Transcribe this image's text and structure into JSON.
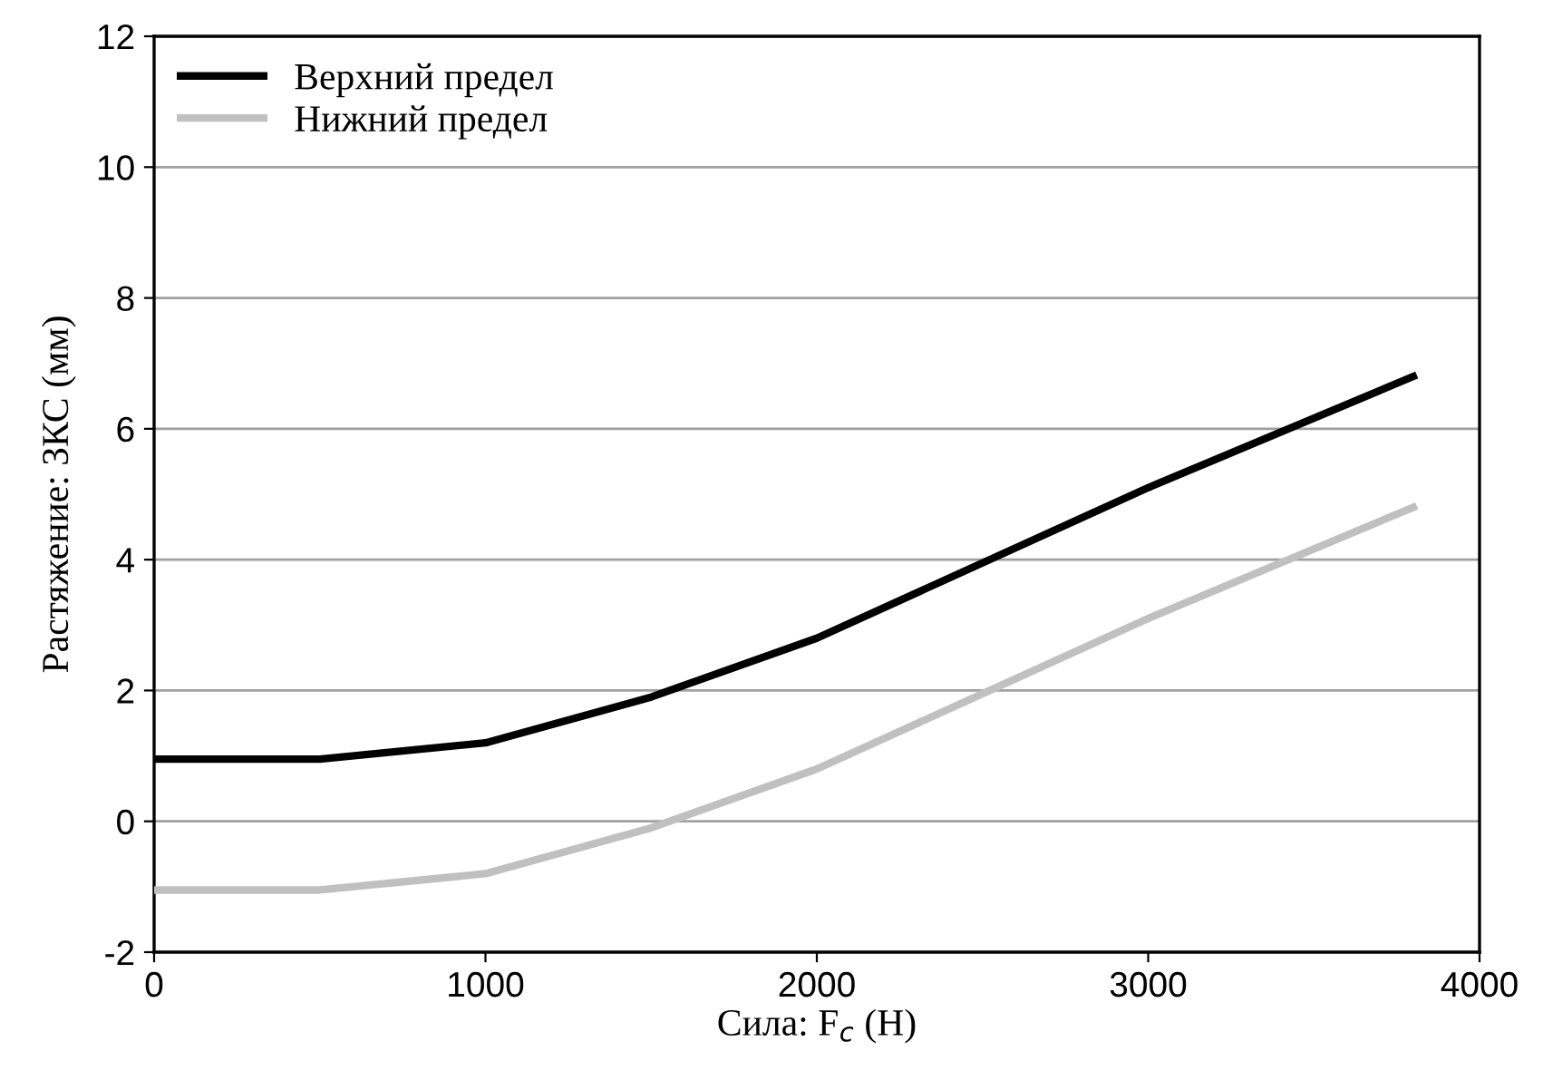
{
  "chart_data": {
    "type": "line",
    "xlabel": "Сила: F$_{c}$ (Н)",
    "ylabel": "Растяжение: ЗКС (мм)",
    "x": [
      0,
      500,
      1000,
      1500,
      2000,
      3000,
      3800
    ],
    "series": [
      {
        "name": "Верхний предел",
        "color": "#000000",
        "values": [
          0.95,
          0.95,
          1.2,
          1.9,
          2.8,
          5.1,
          6.8
        ]
      },
      {
        "name": "Нижний предел",
        "color": "#c0c0c0",
        "values": [
          -1.05,
          -1.05,
          -0.8,
          -0.1,
          0.8,
          3.1,
          4.8
        ]
      }
    ],
    "xlim": [
      0,
      4000
    ],
    "xticks": [
      0,
      1000,
      2000,
      3000,
      4000
    ],
    "ylim": [
      -2,
      12
    ],
    "yticks": [
      {
        "value": -2,
        "label": "-2"
      },
      0,
      2,
      4,
      6,
      8,
      10,
      12
    ],
    "grid": "y",
    "legend": "top left",
    "line_style": "solid",
    "marker": "none"
  }
}
